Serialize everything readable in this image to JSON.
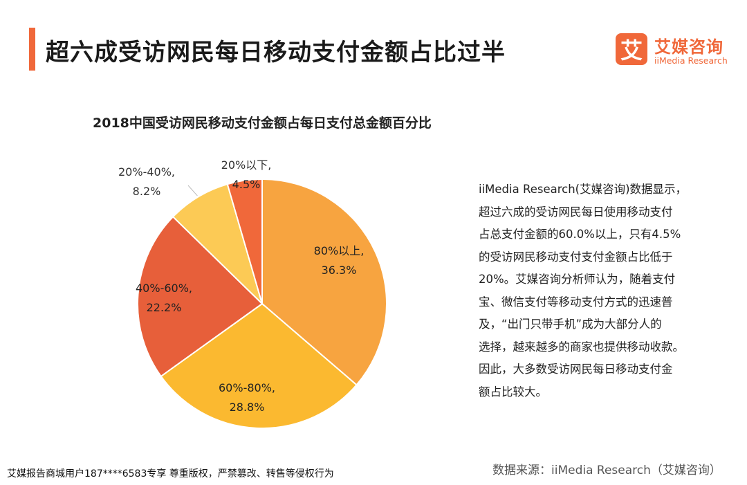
{
  "header": {
    "title": "超六成受访网民每日移动支付金额占比过半",
    "logo_mark": "艾",
    "logo_cn": "艾媒咨询",
    "logo_en": "iiMedia Research"
  },
  "chart_data": {
    "type": "pie",
    "title": "2018中国受访网民移动支付金额占每日支付总金额百分比",
    "slices": [
      {
        "name": "80%以上",
        "value": 36.3,
        "label": [
          "80%以上,",
          "36.3%"
        ],
        "color": "#f7a440"
      },
      {
        "name": "60%-80%",
        "value": 28.8,
        "label": [
          "60%-80%,",
          "28.8%"
        ],
        "color": "#fbb930"
      },
      {
        "name": "40%-60%",
        "value": 22.2,
        "label": [
          "40%-60%,",
          "22.2%"
        ],
        "color": "#e75f3a"
      },
      {
        "name": "20%-40%",
        "value": 8.2,
        "label": [
          "20%-40%,",
          "8.2%"
        ],
        "color": "#fcca55"
      },
      {
        "name": "20%以下",
        "value": 4.5,
        "label": [
          "20%以下,",
          "4.5%"
        ],
        "color": "#f0683a"
      }
    ]
  },
  "description": {
    "lines": [
      "iiMedia Research(艾媒咨询)数据显示，",
      "超过六成的受访网民每日使用移动支付",
      "占总支付金额的60.0%以上，只有4.5%",
      "的受访网民移动支付支付金额占比低于",
      "20%。艾媒咨询分析师认为，随着支付",
      "宝、微信支付等移动支付方式的迅速普",
      "及，“出门只带手机”成为大部分人的",
      "选择，越来越多的商家也提供移动收款。",
      "因此，大多数受访网民每日移动支付金",
      "额占比较大。"
    ]
  },
  "footer": {
    "left": "艾媒报告商城用户187****6583专享 尊重版权，严禁篡改、转售等侵权行为",
    "source": "数据来源：iiMedia Research（艾媒咨询）"
  }
}
